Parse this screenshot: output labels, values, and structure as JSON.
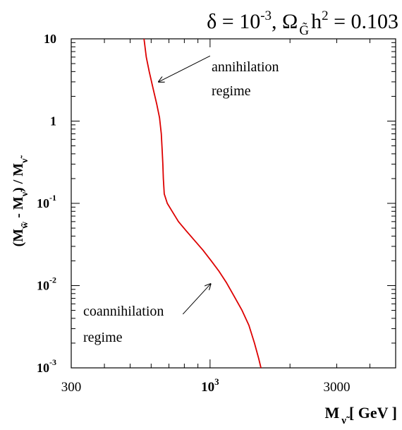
{
  "chart_data": {
    "type": "line",
    "title": {
      "delta_symbol": "δ",
      "delta_eq": " = 10",
      "delta_exp": "-3",
      "sep": ",  ",
      "omega": "Ω",
      "omega_sub": "G̃",
      "h_part": "h",
      "h_exp": "2",
      "value": " = 0.103"
    },
    "xlabel": {
      "main": "M",
      "sub": "ν̃",
      "unit": "[ GeV ]"
    },
    "ylabel": {
      "part1": "(M",
      "sub1": "w̃",
      "part2": " - M",
      "sub2": "ν̃",
      "part3": ") / M",
      "sub3": "ν̃"
    },
    "x_scale": "log",
    "y_scale": "log",
    "xlim": [
      300,
      5000
    ],
    "ylim": [
      0.001,
      10
    ],
    "x_ticks": [
      {
        "value": 300,
        "label": "300"
      },
      {
        "value": 1000,
        "label": "10",
        "exp": "3"
      },
      {
        "value": 3000,
        "label": "3000"
      }
    ],
    "y_ticks": [
      {
        "value": 10,
        "label": "10"
      },
      {
        "value": 1,
        "label": "1"
      },
      {
        "value": 0.1,
        "label": "10",
        "exp": "-1"
      },
      {
        "value": 0.01,
        "label": "10",
        "exp": "-2"
      },
      {
        "value": 0.001,
        "label": "10",
        "exp": "-3"
      }
    ],
    "series": [
      {
        "color": "#dd0000",
        "points": [
          [
            564,
            10
          ],
          [
            575,
            6
          ],
          [
            590,
            4
          ],
          [
            610,
            2.5
          ],
          [
            630,
            1.6
          ],
          [
            645,
            1.1
          ],
          [
            655,
            0.7
          ],
          [
            660,
            0.45
          ],
          [
            664,
            0.3
          ],
          [
            667,
            0.2
          ],
          [
            672,
            0.13
          ],
          [
            690,
            0.1
          ],
          [
            720,
            0.08
          ],
          [
            760,
            0.06
          ],
          [
            810,
            0.047
          ],
          [
            870,
            0.036
          ],
          [
            940,
            0.027
          ],
          [
            1010,
            0.02
          ],
          [
            1080,
            0.015
          ],
          [
            1150,
            0.011
          ],
          [
            1230,
            0.0075
          ],
          [
            1320,
            0.005
          ],
          [
            1400,
            0.0033
          ],
          [
            1470,
            0.002
          ],
          [
            1525,
            0.0013
          ],
          [
            1555,
            0.001
          ]
        ]
      }
    ],
    "annotations": [
      {
        "line1": "annihilation",
        "line2": "regime",
        "arrow_from": [
          1000,
          6.2
        ],
        "arrow_to": [
          640,
          3.0
        ]
      },
      {
        "line1": "coannihilation",
        "line2": "regime",
        "arrow_from": [
          790,
          0.0045
        ],
        "arrow_to": [
          1005,
          0.0105
        ]
      }
    ],
    "grid": false,
    "legend": "none",
    "colors": {
      "line": "#dd0000",
      "axis": "#000000",
      "background": "#ffffff"
    }
  }
}
